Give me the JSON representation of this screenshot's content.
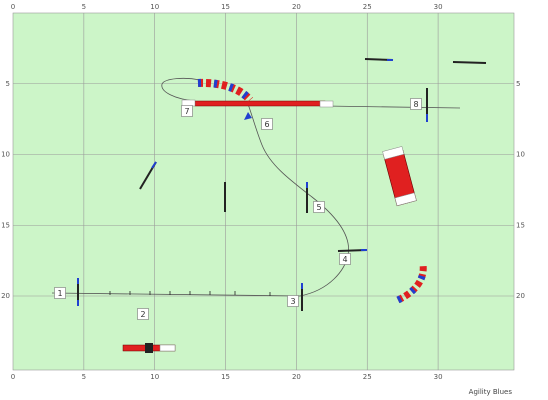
{
  "x_axis": {
    "ticks": [
      0,
      5,
      10,
      15,
      20,
      25,
      30
    ]
  },
  "y_axis": {
    "ticks": [
      5,
      10,
      15,
      20
    ]
  },
  "numbers": [
    "1",
    "2",
    "3",
    "4",
    "5",
    "6",
    "7",
    "8"
  ],
  "footer": "Agility Blues"
}
